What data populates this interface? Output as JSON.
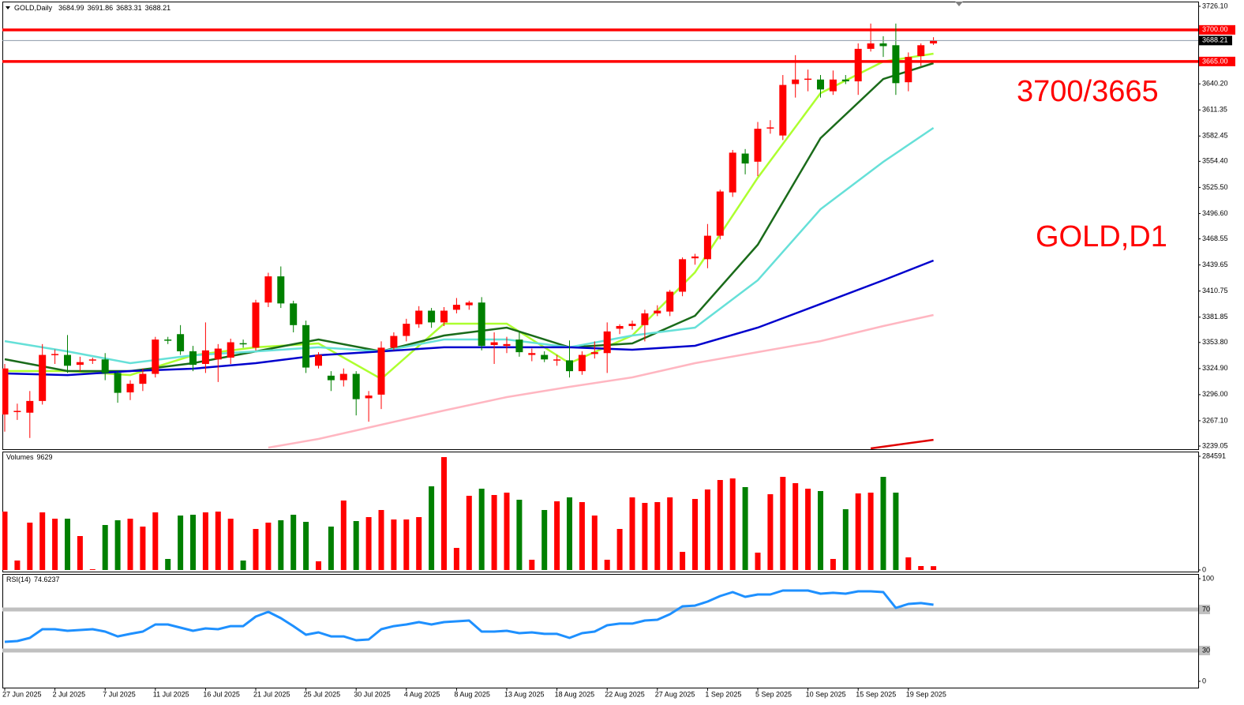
{
  "chart_data": [
    {
      "type": "candlestick",
      "title": "GOLD,Daily",
      "categories": [
        "27 Jun 2025",
        null,
        null,
        null,
        "2 Jul 2025",
        null,
        null,
        null,
        "7 Jul 2025",
        null,
        null,
        null,
        "11 Jul 2025",
        null,
        null,
        null,
        "16 Jul 2025",
        null,
        null,
        null,
        "21 Jul 2025",
        null,
        null,
        null,
        "25 Jul 2025",
        null,
        null,
        null,
        "30 Jul 2025",
        null,
        null,
        null,
        "4 Aug 2025",
        null,
        null,
        null,
        "8 Aug 2025",
        null,
        null,
        null,
        "13 Aug 2025",
        null,
        null,
        null,
        "18 Aug 2025",
        null,
        null,
        null,
        "22 Aug 2025",
        null,
        null,
        null,
        "27 Aug 2025",
        null,
        null,
        null,
        "1 Sep 2025",
        null,
        null,
        null,
        "5 Sep 2025",
        null,
        null,
        null,
        "10 Sep 2025",
        null,
        null,
        null,
        "15 Sep 2025",
        null,
        null,
        null,
        "19 Sep 2025",
        null,
        null
      ],
      "open": [
        3274,
        3277,
        3276,
        3289,
        3340,
        3340,
        3329,
        3334,
        3335,
        3320,
        3298.5,
        3308,
        3319,
        3357,
        3363,
        3344,
        3330,
        3335,
        3337,
        3353,
        3348,
        3398,
        3427,
        3397,
        3373,
        3328,
        3317,
        3312,
        3319,
        3292,
        3296,
        3348,
        3361,
        3374,
        3389,
        3376,
        3390,
        3395,
        3398,
        3351,
        3350,
        3357,
        3340,
        3340,
        3335,
        3334,
        3322,
        3341,
        3342,
        3369,
        3372,
        3373,
        3386,
        3388,
        3410,
        3447,
        3446,
        3472,
        3520,
        3563,
        3554,
        3591,
        3583,
        3640,
        3645,
        3645,
        3632,
        3645,
        3643,
        3679,
        3685,
        3683,
        3642,
        3671,
        3684.99
      ],
      "high": [
        3330,
        3286,
        3300,
        3352,
        3346,
        3362,
        3338,
        3337,
        3342,
        3322,
        3312,
        3325,
        3360,
        3360,
        3373,
        3350,
        3376,
        3352,
        3358,
        3357,
        3401,
        3431,
        3438,
        3400,
        3378,
        3343,
        3322,
        3325,
        3322,
        3300,
        3355,
        3365,
        3380,
        3394,
        3392,
        3393,
        3403,
        3400,
        3404,
        3365,
        3360,
        3365,
        3347,
        3344,
        3340,
        3356,
        3344,
        3355,
        3376,
        3374,
        3378,
        3390,
        3395,
        3412,
        3448,
        3452,
        3485,
        3523,
        3567,
        3568,
        3598,
        3600,
        3650,
        3672,
        3656,
        3650,
        3655,
        3650,
        3685,
        3707,
        3693,
        3707,
        3675,
        3685,
        3691.86
      ],
      "low": [
        3255,
        3268,
        3248,
        3285,
        3330,
        3320,
        3322,
        3330,
        3312,
        3287,
        3290,
        3300,
        3315,
        3352,
        3340,
        3322,
        3320,
        3310,
        3330,
        3348,
        3345,
        3393,
        3392,
        3365,
        3320,
        3325,
        3300,
        3305,
        3273,
        3266,
        3280,
        3345,
        3355,
        3370,
        3370,
        3372,
        3386,
        3390,
        3345,
        3330,
        3342,
        3338,
        3333,
        3332,
        3328,
        3315,
        3318,
        3336,
        3320,
        3363,
        3368,
        3355,
        3383,
        3383,
        3405,
        3440,
        3436,
        3468,
        3515,
        3540,
        3538,
        3585,
        3578,
        3625,
        3632,
        3625,
        3628,
        3640,
        3628,
        3676,
        3670,
        3628,
        3632,
        3660,
        3683.31
      ],
      "close": [
        3325,
        3278,
        3289,
        3340,
        3341,
        3328,
        3332,
        3335,
        3320,
        3298,
        3308,
        3319,
        3357,
        3356,
        3344,
        3329,
        3345,
        3347,
        3354,
        3352,
        3398,
        3427,
        3397,
        3373,
        3326,
        3340,
        3312,
        3319,
        3291,
        3295,
        3348,
        3361,
        3374.5,
        3389,
        3376,
        3389,
        3395.5,
        3398,
        3350,
        3354,
        3352,
        3343,
        3342,
        3335,
        3335,
        3322,
        3340,
        3343,
        3366,
        3372,
        3374.5,
        3386,
        3389,
        3410,
        3446,
        3449,
        3472,
        3521,
        3564,
        3552,
        3590.5,
        3592,
        3639,
        3645,
        3646,
        3634,
        3645,
        3643,
        3679,
        3685,
        3682,
        3641,
        3670,
        3683,
        3688.21
      ],
      "up_color": "#ff0000",
      "down_color": "#008000",
      "ylim": [
        3239.05,
        3726.1
      ],
      "yticks": [
        {
          "value": 3726.1,
          "label": "3726.10"
        },
        {
          "value": 3640.2,
          "label": "3640.20"
        },
        3611.35,
        3582.45,
        {
          "value": 3554.4,
          "label": "3554.40"
        },
        {
          "value": 3525.5,
          "label": "3525.50"
        },
        {
          "value": 3496.6,
          "label": "3496.60"
        },
        3468.55,
        3439.65,
        3410.75,
        3381.85,
        {
          "value": 3353.8,
          "label": "3353.80"
        },
        {
          "value": 3324.9,
          "label": "3324.90"
        },
        {
          "value": 3296,
          "label": "3296.00"
        },
        {
          "value": 3267.1,
          "label": "3267.10"
        },
        3239.05
      ],
      "levels": [
        {
          "value": 3700,
          "label": "3700.00",
          "color": "#ff0000"
        },
        {
          "value": 3665,
          "label": "3665.00",
          "color": "#ff0000"
        }
      ],
      "overlays": [
        {
          "color": "#adff2f",
          "x": [
            0,
            5,
            10,
            15,
            20,
            25,
            30,
            35,
            40,
            45,
            50,
            55,
            60,
            65,
            70,
            74
          ],
          "values": [
            3322.1,
            3322.1,
            3317.7,
            3339.6,
            3348.4,
            3352.7,
            3313.4,
            3374.6,
            3374.6,
            3330.9,
            3361.5,
            3431.4,
            3536.3,
            3629.9,
            3664.9,
            3673.6
          ]
        },
        {
          "color": "#1a6b1a",
          "x": [
            0,
            5,
            10,
            15,
            20,
            25,
            30,
            35,
            40,
            45,
            50,
            55,
            60,
            65,
            70,
            74
          ],
          "values": [
            3335.2,
            3322.1,
            3322.1,
            3330.9,
            3343.9,
            3357.1,
            3343.9,
            3361.5,
            3370.2,
            3348.4,
            3352.7,
            3383.3,
            3462.0,
            3580.1,
            3645.6,
            3663.1
          ]
        },
        {
          "color": "#66e0d8",
          "x": [
            0,
            5,
            10,
            15,
            20,
            25,
            30,
            35,
            40,
            45,
            50,
            55,
            60,
            65,
            70,
            74
          ],
          "values": [
            3355.3,
            3343.9,
            3330.9,
            3339.6,
            3343.9,
            3348.4,
            3343.9,
            3357.1,
            3357.1,
            3348.4,
            3361.5,
            3370.2,
            3422.7,
            3501.4,
            3553.8,
            3591.4
          ]
        },
        {
          "color": "#0000cd",
          "x": [
            0,
            5,
            10,
            15,
            20,
            25,
            30,
            35,
            40,
            45,
            50,
            55,
            60,
            65,
            70,
            74
          ],
          "values": [
            3319.5,
            3317.7,
            3322.1,
            3324.7,
            3330.9,
            3339.6,
            3343.9,
            3348.4,
            3348.4,
            3348.4,
            3345.7,
            3350.1,
            3370.2,
            3396.4,
            3422.7,
            3444.5
          ]
        },
        {
          "color": "#ffb6c1",
          "x": [
            21,
            25,
            30,
            35,
            40,
            45,
            50,
            55,
            60,
            65,
            70,
            74
          ],
          "values": [
            3237.3,
            3246.9,
            3262.7,
            3278.4,
            3293.3,
            3304.6,
            3315.1,
            3330.9,
            3343.1,
            3355.3,
            3372.0,
            3384.2
          ]
        },
        {
          "color": "#e00000",
          "x": [
            69,
            74
          ],
          "values": [
            3236.4,
            3246.0
          ]
        }
      ],
      "annotations": [
        "3700/3665",
        "GOLD,D1"
      ]
    },
    {
      "type": "bar",
      "title": "Volumes",
      "values": [
        146246,
        23716,
        118578,
        144270,
        128460,
        128460,
        84981,
        1976,
        112649,
        124507,
        128460,
        108697,
        144270,
        27668,
        136365,
        138341,
        144270,
        146246,
        128460,
        23716,
        102768,
        118578,
        124507,
        138341,
        120554,
        21739,
        108697,
        173914,
        122531,
        132412,
        150199,
        126483,
        126483,
        132412,
        209488,
        282611,
        55336,
        185772,
        203559,
        187749,
        193677,
        175891,
        25692,
        150199,
        171938,
        181820,
        169962,
        136365,
        25692,
        102768,
        181820,
        167986,
        169962,
        181820,
        45455,
        177867,
        201583,
        225298,
        229251,
        207512,
        43479,
        189725,
        233203,
        217393,
        203559,
        197630,
        27668,
        152175,
        191701,
        193677,
        233203,
        193677,
        31621,
        9882,
        9629
      ],
      "ylim": [
        0,
        284591
      ],
      "yticks": [
        0,
        284591
      ]
    },
    {
      "type": "line",
      "title": "RSI(14)",
      "color": "#1e90ff",
      "values": [
        38.5,
        39.2,
        42.3,
        50.8,
        50.8,
        49.2,
        50.0,
        50.8,
        48.5,
        43.8,
        46.2,
        48.5,
        55.4,
        55.4,
        52.3,
        49.2,
        51.5,
        50.8,
        53.8,
        53.8,
        63.1,
        67.7,
        61.5,
        53.8,
        45.4,
        47.7,
        43.8,
        43.8,
        40.0,
        40.8,
        50.8,
        53.8,
        55.4,
        57.7,
        55.4,
        57.7,
        58.5,
        59.2,
        48.5,
        48.5,
        49.2,
        46.9,
        47.7,
        46.2,
        46.2,
        42.3,
        46.9,
        48.5,
        54.6,
        56.2,
        56.2,
        59.2,
        60.0,
        65.4,
        73.1,
        73.8,
        77.7,
        83.1,
        86.9,
        82.3,
        84.6,
        84.6,
        88.5,
        88.5,
        88.5,
        85.4,
        86.2,
        85.4,
        87.7,
        87.7,
        86.9,
        71.5,
        75.4,
        76.2,
        74.6237
      ],
      "ylim": [
        0,
        100
      ],
      "yticks": [
        0,
        30,
        70,
        100
      ]
    }
  ]
}
